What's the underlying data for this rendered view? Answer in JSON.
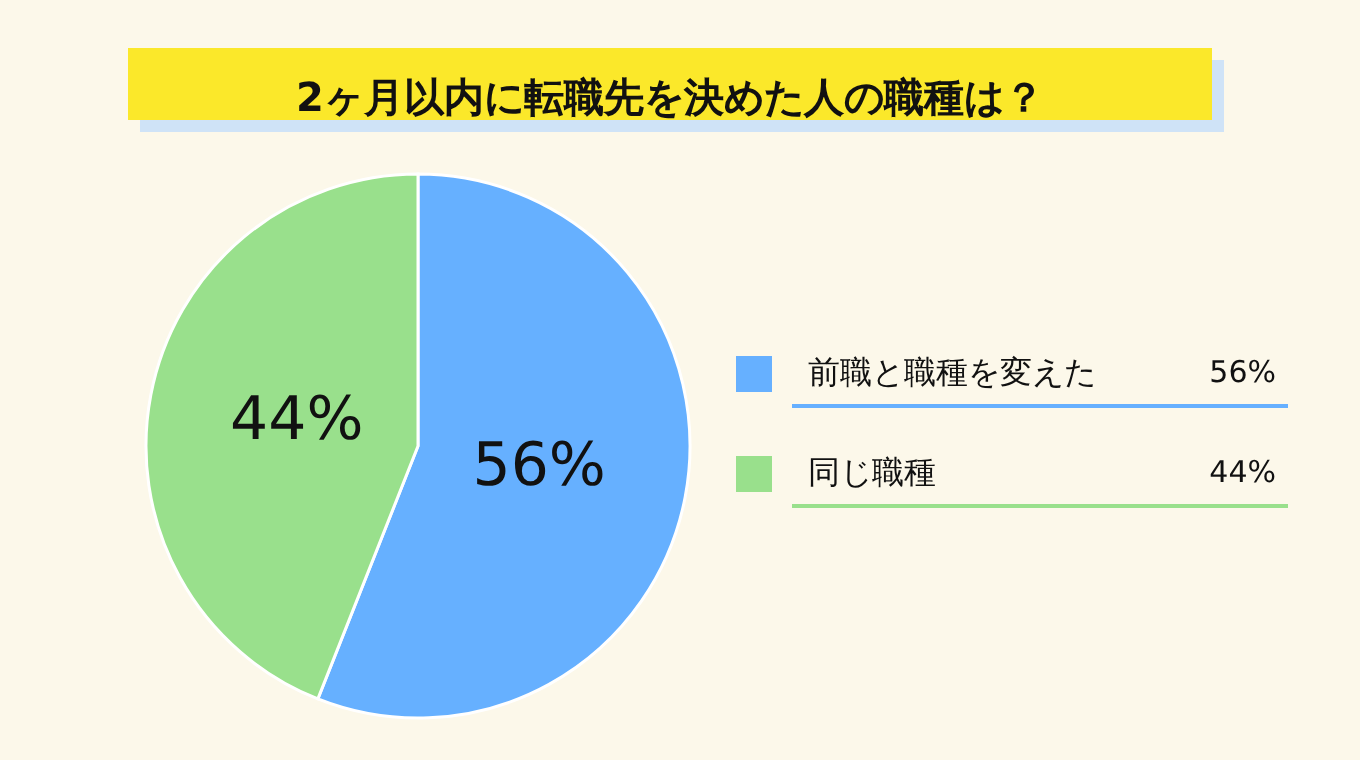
{
  "chart_data": {
    "type": "pie",
    "title": "2ヶ月以内に転職先を決めた人の職種は？",
    "categories": [
      "前職と職種を変えた",
      "同じ職種"
    ],
    "values": [
      56,
      44
    ],
    "colors": [
      "#66b0ff",
      "#99e08c"
    ],
    "value_labels": [
      "56%",
      "44%"
    ],
    "legend": "right"
  }
}
